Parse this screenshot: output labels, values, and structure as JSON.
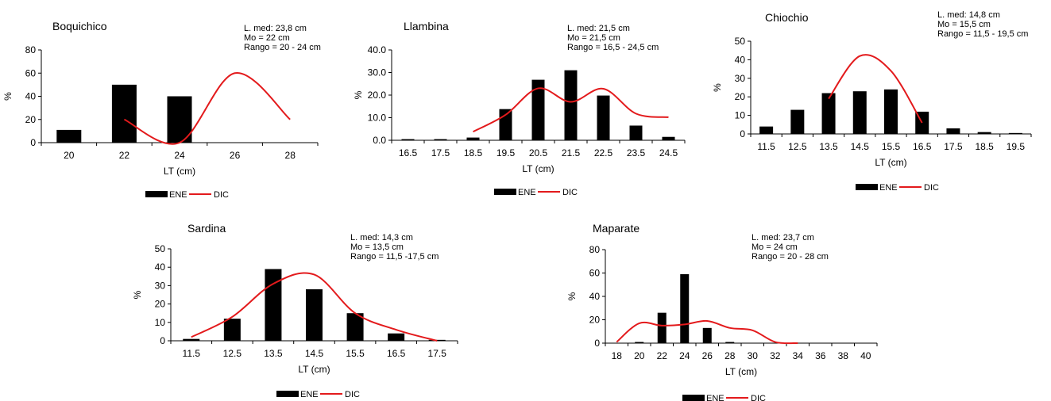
{
  "legend": {
    "bar_label": "ENE",
    "line_label": "DIC"
  },
  "colors": {
    "bar": "#000000",
    "line": "#e31a1c",
    "axis": "#000000"
  },
  "chart_data": [
    {
      "type": "bar",
      "title": "Boquichico",
      "xlabel": "LT (cm)",
      "ylabel": "%",
      "stats": [
        "L. med:  23,8 cm",
        "Mo =  22 cm",
        "Rango = 20 - 24 cm"
      ],
      "categories": [
        "20",
        "22",
        "24",
        "26",
        "28"
      ],
      "ylim": [
        0,
        80
      ],
      "yticks": [
        "0",
        "20",
        "40",
        "60",
        "80"
      ],
      "series": [
        {
          "name": "ENE",
          "type": "bar",
          "values": [
            11,
            50,
            40,
            null,
            null
          ]
        },
        {
          "name": "DIC",
          "type": "line",
          "values": [
            null,
            20,
            0,
            60,
            20
          ]
        }
      ]
    },
    {
      "type": "bar",
      "title": "Llambina",
      "xlabel": "LT (cm)",
      "ylabel": "%",
      "stats": [
        "L. med: 21,5  cm",
        "Mo =  21,5 cm",
        "Rango = 16,5  - 24,5 cm"
      ],
      "categories": [
        "16.5",
        "17.5",
        "18.5",
        "19.5",
        "20.5",
        "21.5",
        "22.5",
        "23.5",
        "24.5"
      ],
      "ylim": [
        0,
        40
      ],
      "yticks": [
        "0.0",
        "10.0",
        "20.0",
        "30.0",
        "40.0"
      ],
      "series": [
        {
          "name": "ENE",
          "type": "bar",
          "values": [
            0.5,
            0.5,
            1.2,
            13.8,
            26.8,
            31,
            19.8,
            6.5,
            1.5
          ]
        },
        {
          "name": "DIC",
          "type": "line",
          "values": [
            null,
            null,
            3.8,
            11.3,
            23,
            17,
            22.8,
            11.8,
            10.2
          ]
        }
      ]
    },
    {
      "type": "bar",
      "title": "Chiochio",
      "xlabel": "LT (cm)",
      "ylabel": "%",
      "stats": [
        "L. med: 14,8 cm",
        "Mo =  15,5 cm",
        "Rango = 11,5 - 19,5 cm"
      ],
      "categories": [
        "11.5",
        "12.5",
        "13.5",
        "14.5",
        "15.5",
        "16.5",
        "17.5",
        "18.5",
        "19.5"
      ],
      "ylim": [
        0,
        50
      ],
      "yticks": [
        "0",
        "10",
        "20",
        "30",
        "40",
        "50"
      ],
      "series": [
        {
          "name": "ENE",
          "type": "bar",
          "values": [
            4,
            13,
            22,
            23,
            24,
            12,
            3,
            1,
            0.5
          ]
        },
        {
          "name": "DIC",
          "type": "line",
          "values": [
            null,
            null,
            19,
            42,
            34,
            6,
            null,
            null,
            null
          ]
        }
      ]
    },
    {
      "type": "bar",
      "title": "Sardina",
      "xlabel": "LT (cm)",
      "ylabel": "%",
      "stats": [
        "L. med:  14,3 cm",
        "Mo =  13,5 cm",
        "Rango = 11,5 -17,5 cm"
      ],
      "categories": [
        "11.5",
        "12.5",
        "13.5",
        "14.5",
        "15.5",
        "16.5",
        "17.5"
      ],
      "ylim": [
        0,
        50
      ],
      "yticks": [
        "0",
        "10",
        "20",
        "30",
        "40",
        "50"
      ],
      "series": [
        {
          "name": "ENE",
          "type": "bar",
          "values": [
            1,
            12,
            39,
            28,
            15,
            4,
            0.5
          ]
        },
        {
          "name": "DIC",
          "type": "line",
          "values": [
            2,
            13,
            31,
            36,
            15,
            6,
            0
          ]
        }
      ]
    },
    {
      "type": "bar",
      "title": "Maparate",
      "xlabel": "LT (cm)",
      "ylabel": "%",
      "stats": [
        "L. med:  23,7 cm",
        "Mo =  24 cm",
        "Rango = 20 - 28  cm"
      ],
      "categories": [
        "18",
        "20",
        "22",
        "24",
        "26",
        "28",
        "30",
        "32",
        "34",
        "36",
        "38",
        "40"
      ],
      "ylim": [
        0,
        80
      ],
      "yticks": [
        "0",
        "20",
        "40",
        "60",
        "80"
      ],
      "series": [
        {
          "name": "ENE",
          "type": "bar",
          "values": [
            0,
            1,
            26,
            59,
            13,
            1,
            0,
            0,
            0,
            0,
            0,
            0
          ]
        },
        {
          "name": "DIC",
          "type": "line",
          "values": [
            1,
            17,
            15,
            16,
            19,
            13,
            11,
            1,
            0,
            null,
            null,
            null
          ]
        }
      ]
    }
  ]
}
